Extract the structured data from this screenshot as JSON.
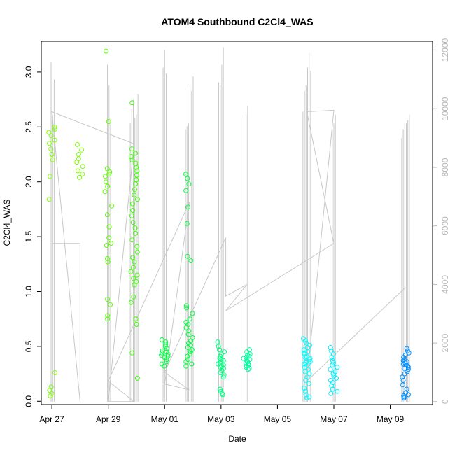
{
  "chart_data": {
    "type": "scatter",
    "title": "ATOM4 Southbound C2Cl4_WAS",
    "xlabel": "Date",
    "ylabel": "C2Cl4_WAS",
    "x_is_date": true,
    "xlim": [
      "2016-04-26T15:00",
      "2016-05-10T12:00"
    ],
    "ylim": [
      -0.03,
      3.28
    ],
    "y2lim": [
      -100,
      12300
    ],
    "x_ticks": [
      {
        "label": "Apr 27",
        "value": "2016-04-27"
      },
      {
        "label": "Apr 29",
        "value": "2016-04-29"
      },
      {
        "label": "May 01",
        "value": "2016-05-01"
      },
      {
        "label": "May 03",
        "value": "2016-05-03"
      },
      {
        "label": "May 05",
        "value": "2016-05-05"
      },
      {
        "label": "May 07",
        "value": "2016-05-07"
      },
      {
        "label": "May 09",
        "value": "2016-05-09"
      }
    ],
    "y_ticks": [
      {
        "label": "0.0",
        "value": 0.0
      },
      {
        "label": "0.5",
        "value": 0.5
      },
      {
        "label": "1.0",
        "value": 1.0
      },
      {
        "label": "1.5",
        "value": 1.5
      },
      {
        "label": "2.0",
        "value": 2.0
      },
      {
        "label": "2.5",
        "value": 2.5
      },
      {
        "label": "3.0",
        "value": 3.0
      }
    ],
    "y2_ticks": [
      {
        "label": "0",
        "value": 0
      },
      {
        "label": "2000",
        "value": 2000
      },
      {
        "label": "4000",
        "value": 4000
      },
      {
        "label": "6000",
        "value": 6000
      },
      {
        "label": "8000",
        "value": 8000
      },
      {
        "label": "10000",
        "value": 10000
      },
      {
        "label": "12000",
        "value": 12000
      }
    ],
    "colors": {
      "marker_gradient": [
        "#80ff00",
        "#00ff40",
        "#00ffff",
        "#0080ff"
      ],
      "secondary_line": "#c8c8c8"
    },
    "flights": [
      {
        "date": "2016-04-27T00:00",
        "color": "#7fff00",
        "values": [
          2.5,
          2.48,
          2.45,
          2.42,
          2.38,
          2.35,
          2.3,
          2.25,
          2.2,
          2.05,
          1.84,
          0.26,
          0.13,
          0.1,
          0.07,
          0.05
        ],
        "spikes": [
          0,
          11600,
          9800,
          11000
        ]
      },
      {
        "date": "2016-04-28T00:00",
        "color": "#7fff00",
        "values": [
          2.34,
          2.29,
          2.25,
          2.21,
          2.18,
          2.14,
          2.1,
          2.07,
          2.04
        ],
        "spikes": []
      },
      {
        "date": "2016-04-29T00:00",
        "color": "#5cff00",
        "values": [
          3.19,
          2.55,
          2.12,
          2.09,
          2.07,
          2.05,
          2.0,
          1.96,
          1.91,
          1.78,
          1.7,
          1.59,
          1.49,
          1.44,
          1.42,
          1.3,
          1.27,
          0.93,
          0.88,
          0.78,
          0.75
        ],
        "spikes": [
          0,
          11500,
          10800,
          9600
        ]
      },
      {
        "date": "2016-04-29T22:00",
        "color": "#3cff00",
        "values": [
          2.72,
          2.3,
          2.26,
          2.23,
          2.2,
          2.17,
          2.13,
          2.1,
          2.06,
          2.02,
          1.98,
          1.93,
          1.88,
          1.84,
          1.8,
          1.74,
          1.69,
          1.63,
          1.58,
          1.53,
          1.47,
          1.41,
          1.36,
          1.31,
          1.27,
          1.22,
          1.18,
          1.15,
          1.12,
          1.09,
          1.06,
          0.95,
          0.9,
          0.75,
          0.7,
          0.44,
          0.21
        ],
        "spikes": [
          9500,
          10000,
          10300,
          9700,
          9800,
          10500
        ]
      },
      {
        "date": "2016-05-01T00:00",
        "color": "#00ff40",
        "values": [
          0.56,
          0.54,
          0.52,
          0.5,
          0.48,
          0.46,
          0.45,
          0.44,
          0.43,
          0.42,
          0.41,
          0.4,
          0.38,
          0.36,
          0.34,
          0.32
        ],
        "spikes": [
          11400,
          12000,
          11200
        ]
      },
      {
        "date": "2016-05-01T21:00",
        "color": "#00ff40",
        "values": [
          2.07,
          2.03,
          1.98,
          1.92,
          1.77,
          1.62,
          1.32,
          1.28,
          0.87,
          0.85,
          0.8,
          0.75,
          0.72,
          0.7,
          0.67,
          0.64,
          0.61,
          0.58,
          0.55,
          0.53,
          0.51,
          0.49,
          0.47,
          0.45,
          0.43,
          0.41,
          0.38,
          0.36,
          0.34,
          0.32
        ],
        "spikes": [
          9300,
          9400,
          9500,
          10800,
          10600,
          11100
        ]
      },
      {
        "date": "2016-05-03T00:00",
        "color": "#00ff80",
        "values": [
          0.54,
          0.5,
          0.47,
          0.45,
          0.43,
          0.41,
          0.39,
          0.38,
          0.37,
          0.36,
          0.35,
          0.34,
          0.33,
          0.32,
          0.31,
          0.3,
          0.28,
          0.26,
          0.24,
          0.22,
          0.11,
          0.09,
          0.07,
          0.06
        ],
        "spikes": [
          10900,
          10800,
          11500,
          12100
        ]
      },
      {
        "date": "2016-05-03T22:00",
        "color": "#00ffa0",
        "values": [
          0.47,
          0.45,
          0.43,
          0.42,
          0.41,
          0.4,
          0.39,
          0.38,
          0.37,
          0.36,
          0.35,
          0.34,
          0.33,
          0.32,
          0.31,
          0.3,
          0.29
        ],
        "spikes": [
          9800,
          10100
        ]
      },
      {
        "date": "2016-05-06T01:00",
        "color": "#00ffff",
        "values": [
          0.57,
          0.55,
          0.53,
          0.51,
          0.49,
          0.47,
          0.45,
          0.44,
          0.43,
          0.41,
          0.4,
          0.39,
          0.38,
          0.37,
          0.36,
          0.35,
          0.34,
          0.33,
          0.31,
          0.29,
          0.27,
          0.25,
          0.22,
          0.19,
          0.16,
          0.12,
          0.09,
          0.06,
          0.04,
          0.03
        ],
        "spikes": [
          9900,
          10600,
          10800,
          11400,
          11900,
          11300
        ]
      },
      {
        "date": "2016-05-07T00:00",
        "color": "#00f0ff",
        "values": [
          0.49,
          0.46,
          0.43,
          0.4,
          0.37,
          0.35,
          0.33,
          0.31,
          0.29,
          0.27,
          0.25,
          0.23,
          0.21,
          0.19,
          0.17,
          0.14,
          0.11,
          0.09,
          0.07
        ],
        "spikes": [
          9300,
          9500,
          9800
        ]
      },
      {
        "date": "2016-05-09T13:00",
        "color": "#0090ff",
        "values": [
          0.48,
          0.46,
          0.44,
          0.42,
          0.4,
          0.38,
          0.37,
          0.36,
          0.35,
          0.34,
          0.33,
          0.32,
          0.31,
          0.3,
          0.29,
          0.27,
          0.25,
          0.22,
          0.19,
          0.15,
          0.11,
          0.08,
          0.06,
          0.05,
          0.04,
          0.03
        ],
        "spikes": [
          9000,
          9300,
          9500,
          9500,
          9600,
          9800
        ]
      }
    ],
    "secondary_series": {
      "name": "",
      "points": [
        [
          "2016-04-27T00:00",
          5400
        ],
        [
          "2016-04-28T00:00",
          5400
        ],
        [
          "2016-04-28T00:00",
          0
        ],
        [
          "2016-04-27T00:00",
          9900
        ],
        [
          "2016-04-29T22:00",
          8800
        ],
        [
          "2016-04-29T00:00",
          0
        ],
        [
          "2016-04-29T22:00",
          0
        ],
        [
          "2016-04-29T00:00",
          700
        ],
        [
          "2016-05-01T21:00",
          6800
        ],
        [
          "2016-05-01T00:00",
          600
        ],
        [
          "2016-05-01T21:00",
          400
        ],
        [
          "2016-05-01T00:00",
          1000
        ],
        [
          "2016-05-03T04:00",
          5600
        ],
        [
          "2016-05-03T04:00",
          3600
        ],
        [
          "2016-05-03T22:00",
          4000
        ],
        [
          "2016-05-03T04:00",
          3100
        ],
        [
          "2016-05-07T00:00",
          5400
        ],
        [
          "2016-05-06T01:00",
          9900
        ],
        [
          "2016-05-07T00:00",
          9950
        ],
        [
          "2016-05-06T01:00",
          700
        ],
        [
          "2016-05-09T13:00",
          3900
        ]
      ]
    }
  }
}
